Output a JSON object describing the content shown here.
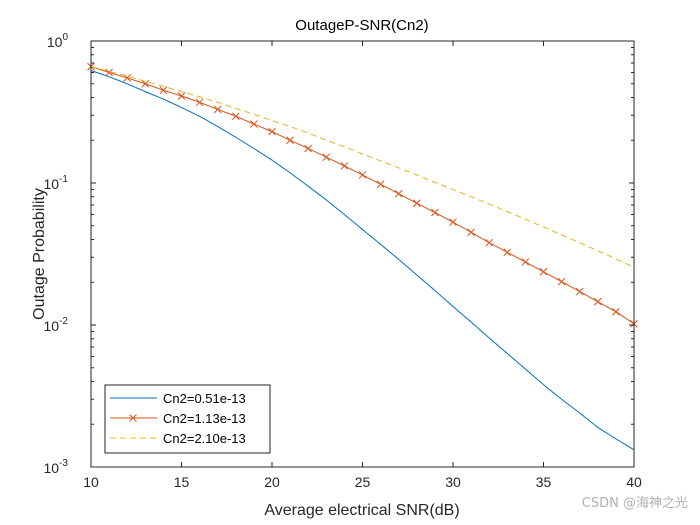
{
  "chart_data": {
    "type": "line",
    "title": "OutageP-SNR(Cn2)",
    "xlabel": "Average electrical SNR(dB)",
    "ylabel": "Outage Probability",
    "xlim": [
      10,
      40
    ],
    "ylim": [
      0.001,
      1
    ],
    "yscale": "log",
    "xticks": [
      10,
      15,
      20,
      25,
      30,
      35,
      40
    ],
    "yticks": [
      {
        "value": 1,
        "base": "10",
        "exp": "0"
      },
      {
        "value": 0.1,
        "base": "10",
        "exp": "-1"
      },
      {
        "value": 0.01,
        "base": "10",
        "exp": "-2"
      },
      {
        "value": 0.001,
        "base": "10",
        "exp": "-3"
      }
    ],
    "legend_position": "bottom-left",
    "x": [
      10,
      11,
      12,
      13,
      14,
      15,
      16,
      17,
      18,
      19,
      20,
      21,
      22,
      23,
      24,
      25,
      26,
      27,
      28,
      29,
      30,
      31,
      32,
      33,
      34,
      35,
      36,
      37,
      38,
      39,
      40
    ],
    "series": [
      {
        "name": "Cn2=0.51e-13",
        "color": "#0072BD",
        "style": "solid",
        "marker": "none",
        "values": [
          0.62,
          0.56,
          0.5,
          0.44,
          0.39,
          0.34,
          0.295,
          0.25,
          0.21,
          0.175,
          0.145,
          0.118,
          0.095,
          0.076,
          0.06,
          0.047,
          0.037,
          0.029,
          0.0225,
          0.0175,
          0.0135,
          0.0105,
          0.0081,
          0.0063,
          0.0049,
          0.0038,
          0.003,
          0.0024,
          0.0019,
          0.00158,
          0.00132
        ]
      },
      {
        "name": "Cn2=1.13e-13",
        "color": "#D95319",
        "style": "solid",
        "marker": "x",
        "values": [
          0.66,
          0.6,
          0.55,
          0.5,
          0.45,
          0.41,
          0.37,
          0.33,
          0.295,
          0.26,
          0.23,
          0.2,
          0.175,
          0.152,
          0.132,
          0.114,
          0.098,
          0.084,
          0.072,
          0.062,
          0.053,
          0.045,
          0.038,
          0.0325,
          0.0278,
          0.0237,
          0.0202,
          0.0172,
          0.0146,
          0.0124,
          0.0102
        ]
      },
      {
        "name": "Cn2=2.10e-13",
        "color": "#EDB120",
        "style": "dashed",
        "marker": "none",
        "values": [
          0.66,
          0.61,
          0.565,
          0.52,
          0.48,
          0.44,
          0.405,
          0.37,
          0.335,
          0.305,
          0.275,
          0.25,
          0.225,
          0.2,
          0.18,
          0.16,
          0.143,
          0.128,
          0.114,
          0.101,
          0.09,
          0.08,
          0.071,
          0.063,
          0.0555,
          0.049,
          0.0432,
          0.038,
          0.0333,
          0.0292,
          0.0255
        ]
      }
    ]
  },
  "watermark": "CSDN @海神之光"
}
